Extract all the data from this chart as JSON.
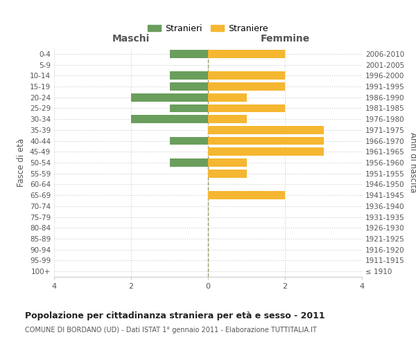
{
  "age_groups": [
    "100+",
    "95-99",
    "90-94",
    "85-89",
    "80-84",
    "75-79",
    "70-74",
    "65-69",
    "60-64",
    "55-59",
    "50-54",
    "45-49",
    "40-44",
    "35-39",
    "30-34",
    "25-29",
    "20-24",
    "15-19",
    "10-14",
    "5-9",
    "0-4"
  ],
  "birth_years": [
    "≤ 1910",
    "1911-1915",
    "1916-1920",
    "1921-1925",
    "1926-1930",
    "1931-1935",
    "1936-1940",
    "1941-1945",
    "1946-1950",
    "1951-1955",
    "1956-1960",
    "1961-1965",
    "1966-1970",
    "1971-1975",
    "1976-1980",
    "1981-1985",
    "1986-1990",
    "1991-1995",
    "1996-2000",
    "2001-2005",
    "2006-2010"
  ],
  "males": [
    0,
    0,
    0,
    0,
    0,
    0,
    0,
    0,
    0,
    0,
    1,
    0,
    1,
    0,
    2,
    1,
    2,
    1,
    1,
    0,
    1
  ],
  "females": [
    0,
    0,
    0,
    0,
    0,
    0,
    0,
    2,
    0,
    1,
    1,
    3,
    3,
    3,
    1,
    2,
    1,
    2,
    2,
    0,
    2
  ],
  "male_color": "#6a9e5c",
  "female_color": "#f5b731",
  "male_label": "Stranieri",
  "female_label": "Straniere",
  "xlim": 4,
  "title_main": "Popolazione per cittadinanza straniera per età e sesso - 2011",
  "title_sub": "COMUNE DI BORDANO (UD) - Dati ISTAT 1° gennaio 2011 - Elaborazione TUTTITALIA.IT",
  "left_header": "Maschi",
  "right_header": "Femmine",
  "left_yaxis_label": "Fasce di età",
  "right_yaxis_label": "Anni di nascita",
  "bg_color": "#ffffff",
  "grid_color": "#cccccc",
  "center_line_color": "#999966",
  "bar_height": 0.75
}
